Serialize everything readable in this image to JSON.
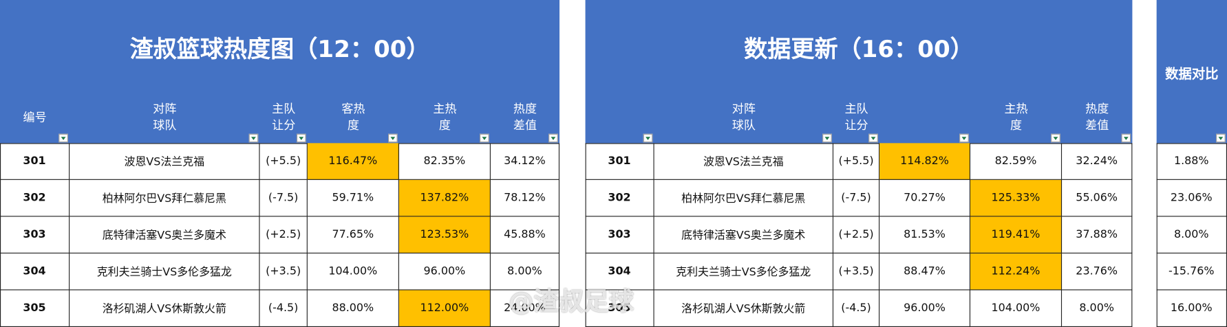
{
  "left": {
    "title": "渣叔篮球热度图（12：00）",
    "headers": [
      "编号",
      "对阵球队",
      "主队让分",
      "客热度",
      "主热度",
      "热度差值"
    ],
    "rows": [
      [
        "301",
        "波恩VS法兰克福",
        "(+5.5)",
        "116.47%",
        "82.35%",
        "34.12%"
      ],
      [
        "302",
        "柏林阿尔巴VS拜仁慕尼黑",
        "(-7.5)",
        "59.71%",
        "137.82%",
        "78.12%"
      ],
      [
        "303",
        "底特律活塞VS奥兰多魔术",
        "(+2.5)",
        "77.65%",
        "123.53%",
        "45.88%"
      ],
      [
        "304",
        "克利夫兰骑士VS多伦多猛龙",
        "(+3.5)",
        "104.00%",
        "96.00%",
        "8.00%"
      ],
      [
        "305",
        "洛杉矶湖人VS休斯敦火箭",
        "(-4.5)",
        "88.00%",
        "112.00%",
        "24.00%"
      ]
    ],
    "highlighted_cells": [
      [
        0,
        3
      ],
      [
        1,
        4
      ],
      [
        2,
        4
      ],
      [
        4,
        4
      ]
    ]
  },
  "middle": {
    "title": "数据更新（16：00）",
    "headers": [
      null,
      "对阵球队",
      "主队让分",
      null,
      "主热度",
      "热度差值"
    ],
    "rows": [
      [
        "301",
        "波恩VS法兰克福",
        "(+5.5)",
        "114.82%",
        "82.59%",
        "32.24%"
      ],
      [
        "302",
        "柏林阿尔巴VS拜仁慕尼黑",
        "(-7.5)",
        "70.27%",
        "125.33%",
        "55.06%"
      ],
      [
        "303",
        "底特律活塞VS奥兰多魔术",
        "(+2.5)",
        "81.53%",
        "119.41%",
        "37.88%"
      ],
      [
        "304",
        "克利夫兰骑士VS多伦多猛龙",
        "(+3.5)",
        "88.47%",
        "112.24%",
        "23.76%"
      ],
      [
        "305",
        "洛杉矶湖人VS休斯敦火箭",
        "(-4.5)",
        "96.00%",
        "104.00%",
        "8.00%"
      ]
    ],
    "highlighted_cells": [
      [
        0,
        3
      ],
      [
        1,
        4
      ],
      [
        2,
        4
      ],
      [
        3,
        4
      ]
    ]
  },
  "right": {
    "title": "数据对比",
    "rows": [
      [
        "1.88%"
      ],
      [
        "23.06%"
      ],
      [
        "8.00%"
      ],
      [
        "-15.76%"
      ],
      [
        "16.00%"
      ]
    ]
  },
  "header_color": "#4472c4",
  "highlight_color": "#ffc000",
  "watermark": "@渣叔足球"
}
